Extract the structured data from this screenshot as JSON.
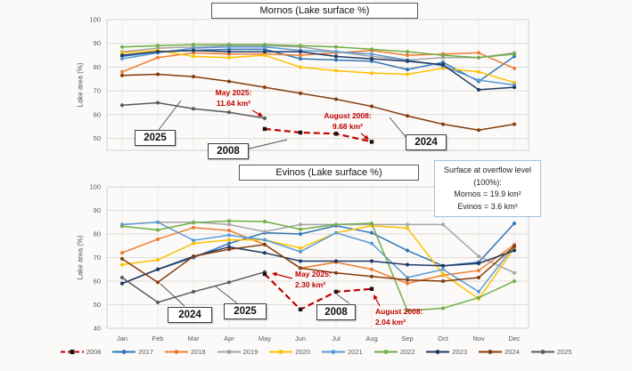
{
  "page": {
    "background": "#fbfaf8",
    "accent_red": "#C00000",
    "infobox_border": "#9DC3E6"
  },
  "overflow_box": {
    "line1": "Surface at overflow level",
    "line2": "(100%):",
    "line3": "Mornos = 19.9 km²",
    "line4": "Evinos = 3.6 km²"
  },
  "legend": [
    {
      "year": "2008",
      "color": "#C00000",
      "dashed": true,
      "marker": "black-square"
    },
    {
      "year": "2017",
      "color": "#2E75B6",
      "dashed": false,
      "marker": "circle"
    },
    {
      "year": "2018",
      "color": "#ED7D31",
      "dashed": false,
      "marker": "circle"
    },
    {
      "year": "2019",
      "color": "#A5A5A5",
      "dashed": false,
      "marker": "circle"
    },
    {
      "year": "2020",
      "color": "#FFC000",
      "dashed": false,
      "marker": "circle"
    },
    {
      "year": "2021",
      "color": "#5B9BD5",
      "dashed": false,
      "marker": "circle"
    },
    {
      "year": "2022",
      "color": "#70AD47",
      "dashed": false,
      "marker": "circle"
    },
    {
      "year": "2023",
      "color": "#1F3864",
      "dashed": false,
      "marker": "circle"
    },
    {
      "year": "2024",
      "color": "#843C0C",
      "dashed": false,
      "marker": "circle"
    },
    {
      "year": "2025",
      "color": "#595959",
      "dashed": false,
      "marker": "circle"
    }
  ],
  "chart_data": [
    {
      "type": "line",
      "title": "Mornos (Lake surface %)",
      "ylabel": "Lake area (%)",
      "x_categories": [
        "Jan",
        "Feb",
        "Mar",
        "Apr",
        "May",
        "Jun",
        "Jul",
        "Aug",
        "Sep",
        "Oct",
        "Nov",
        "Dec"
      ],
      "ylim": [
        45,
        100
      ],
      "yticks": [
        100,
        90,
        80,
        70,
        60,
        50
      ],
      "show_x_labels": false,
      "grid": true,
      "series": [
        {
          "name": "2008",
          "color": "#C00000",
          "dashed": true,
          "values": [
            null,
            null,
            null,
            null,
            54,
            52.5,
            52,
            48.6,
            null,
            null,
            null,
            null
          ]
        },
        {
          "name": "2017",
          "color": "#2E75B6",
          "dashed": false,
          "values": [
            84.5,
            86.5,
            87,
            87.5,
            87.5,
            83.5,
            83,
            82.5,
            79,
            82,
            74,
            84.5
          ]
        },
        {
          "name": "2018",
          "color": "#ED7D31",
          "dashed": false,
          "values": [
            78,
            84,
            86,
            85.5,
            85.5,
            85,
            86,
            87,
            85,
            85.5,
            86,
            79.5
          ]
        },
        {
          "name": "2019",
          "color": "#A5A5A5",
          "dashed": false,
          "values": [
            86.5,
            88,
            88.5,
            89,
            89,
            88.5,
            86.5,
            84.5,
            83,
            84,
            84,
            86
          ]
        },
        {
          "name": "2020",
          "color": "#FFC000",
          "dashed": false,
          "values": [
            86,
            87,
            84.5,
            84,
            85,
            80,
            78.5,
            77.5,
            77,
            79.5,
            78,
            73.5
          ]
        },
        {
          "name": "2021",
          "color": "#5B9BD5",
          "dashed": false,
          "values": [
            83.5,
            86,
            88,
            88.5,
            88.5,
            87,
            86.5,
            85.5,
            83,
            80.5,
            74.5,
            72.5
          ]
        },
        {
          "name": "2022",
          "color": "#70AD47",
          "dashed": false,
          "values": [
            88.5,
            89,
            89.5,
            89.5,
            89.5,
            89,
            88.5,
            87.5,
            86.5,
            85,
            84,
            85.5
          ]
        },
        {
          "name": "2023",
          "color": "#1F3864",
          "dashed": false,
          "values": [
            85,
            86.5,
            87,
            86.5,
            86.5,
            86.5,
            84.5,
            83.5,
            82.5,
            81,
            70.5,
            71.5
          ]
        },
        {
          "name": "2024",
          "color": "#843C0C",
          "dashed": false,
          "values": [
            76.5,
            77,
            76,
            74,
            71.5,
            69,
            66.5,
            63.5,
            59.5,
            56,
            53.5,
            56
          ]
        },
        {
          "name": "2025",
          "color": "#595959",
          "dashed": false,
          "values": [
            64,
            65,
            62.5,
            61,
            58.5,
            null,
            null,
            null,
            null,
            null,
            null,
            null
          ]
        }
      ],
      "annotations": {
        "may_label": "May 2025:",
        "may_value": "11.64 km²",
        "aug_label": "August 2008:",
        "aug_value": "9.68 km²",
        "box_2025": "2025",
        "box_2008": "2008",
        "box_2024": "2024"
      }
    },
    {
      "type": "line",
      "title": "Evinos (Lake surface %)",
      "ylabel": "Lake area (%)",
      "x_categories": [
        "Jan",
        "Feb",
        "Mar",
        "Apr",
        "May",
        "Jun",
        "Jul",
        "Aug",
        "Sep",
        "Oct",
        "Nov",
        "Dec"
      ],
      "ylim": [
        40,
        100
      ],
      "yticks": [
        100,
        90,
        80,
        70,
        60,
        50,
        40
      ],
      "show_x_labels": true,
      "grid": true,
      "series": [
        {
          "name": "2008",
          "color": "#C00000",
          "dashed": true,
          "values": [
            null,
            null,
            null,
            null,
            63,
            48,
            55.5,
            56.7,
            null,
            null,
            null,
            null
          ]
        },
        {
          "name": "2017",
          "color": "#2E75B6",
          "dashed": false,
          "values": [
            59,
            65,
            70,
            76,
            80.5,
            80,
            83.5,
            80.5,
            73,
            66.5,
            68,
            84.5
          ]
        },
        {
          "name": "2018",
          "color": "#ED7D31",
          "dashed": false,
          "values": [
            72,
            77.8,
            82.7,
            81.5,
            75.5,
            65.5,
            68,
            65,
            59,
            62.5,
            64.5,
            75.5
          ]
        },
        {
          "name": "2019",
          "color": "#A5A5A5",
          "dashed": false,
          "values": [
            84,
            85,
            85,
            84,
            81,
            84,
            84,
            84,
            84,
            84,
            70.5,
            63.5
          ]
        },
        {
          "name": "2020",
          "color": "#FFC000",
          "dashed": false,
          "values": [
            67,
            69,
            76,
            77.5,
            77.5,
            74,
            80.5,
            83.5,
            82.5,
            63,
            52.5,
            74
          ]
        },
        {
          "name": "2021",
          "color": "#5B9BD5",
          "dashed": false,
          "values": [
            84,
            85,
            77.3,
            79.5,
            77.5,
            72.5,
            80.5,
            76,
            61.5,
            65,
            55.5,
            75
          ]
        },
        {
          "name": "2022",
          "color": "#70AD47",
          "dashed": false,
          "values": [
            83.3,
            81.7,
            84.8,
            85.5,
            85.3,
            82,
            84,
            84.5,
            47.5,
            48.5,
            53,
            60
          ]
        },
        {
          "name": "2023",
          "color": "#1F3864",
          "dashed": false,
          "values": [
            59,
            65,
            70.5,
            74.5,
            72,
            68.5,
            68.5,
            68.5,
            67,
            66.5,
            67.5,
            73
          ]
        },
        {
          "name": "2024",
          "color": "#843C0C",
          "dashed": false,
          "values": [
            69.5,
            59.5,
            70.5,
            73.5,
            75.5,
            65.5,
            63.5,
            62,
            60.5,
            60,
            61.5,
            74.8
          ]
        },
        {
          "name": "2025",
          "color": "#595959",
          "dashed": false,
          "values": [
            61.5,
            51,
            55.5,
            59.5,
            63.9,
            null,
            null,
            null,
            null,
            null,
            null,
            null
          ]
        }
      ],
      "annotations": {
        "may_label": "May 2025:",
        "may_value": "2.30 km²",
        "aug_label": "August 2008:",
        "aug_value": "2.04 km²",
        "box_2024": "2024",
        "box_2025": "2025",
        "box_2008": "2008"
      }
    }
  ]
}
